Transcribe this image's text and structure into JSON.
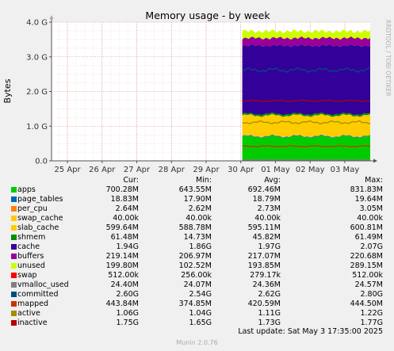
{
  "chart_data": {
    "type": "area",
    "title": "Memory usage - by week",
    "ylabel": "Bytes",
    "watermark": "RRDTOOL / TOBI OETIKER",
    "ylim": [
      0,
      4000000000
    ],
    "yticks": [
      {
        "value": 0,
        "label": "0.0"
      },
      {
        "value": 1000000000,
        "label": "1.0 G"
      },
      {
        "value": 2000000000,
        "label": "2.0 G"
      },
      {
        "value": 3000000000,
        "label": "3.0 G"
      },
      {
        "value": 4000000000,
        "label": "4.0 G"
      }
    ],
    "xlim": [
      "2025-04-24T13:00",
      "2025-05-03T17:35"
    ],
    "xticks": [
      {
        "value": "2025-04-25T00:00",
        "label": "25 Apr"
      },
      {
        "value": "2025-04-26T00:00",
        "label": "26 Apr"
      },
      {
        "value": "2025-04-27T00:00",
        "label": "27 Apr"
      },
      {
        "value": "2025-04-28T00:00",
        "label": "28 Apr"
      },
      {
        "value": "2025-04-29T00:00",
        "label": "29 Apr"
      },
      {
        "value": "2025-04-30T00:00",
        "label": "30 Apr"
      },
      {
        "value": "2025-05-01T00:00",
        "label": "01 May"
      },
      {
        "value": "2025-05-02T00:00",
        "label": "02 May"
      },
      {
        "value": "2025-05-03T00:00",
        "label": "03 May"
      }
    ],
    "data_start": "2025-04-30T01:00",
    "grid": true,
    "columns": [
      "Cur:",
      "Min:",
      "Avg:",
      "Max:"
    ],
    "series": [
      {
        "name": "apps",
        "color": "#00cc00",
        "kind": "area",
        "values": [
          700.28,
          643.55,
          692.46,
          831.83
        ],
        "labels": [
          "700.28M",
          "643.55M",
          "692.46M",
          "831.83M"
        ]
      },
      {
        "name": "page_tables",
        "color": "#0066b3",
        "kind": "area",
        "values": [
          18.83,
          17.9,
          18.79,
          19.64
        ],
        "labels": [
          "18.83M",
          "17.90M",
          "18.79M",
          "19.64M"
        ]
      },
      {
        "name": "per_cpu",
        "color": "#ff8000",
        "kind": "area",
        "values": [
          2.64,
          2.62,
          2.73,
          3.05
        ],
        "labels": [
          "2.64M",
          "2.62M",
          "2.73M",
          "3.05M"
        ]
      },
      {
        "name": "swap_cache",
        "color": "#ffcc00",
        "kind": "area",
        "values": [
          0.04,
          0.04,
          0.04,
          0.04
        ],
        "labels": [
          "40.00k",
          "40.00k",
          "40.00k",
          "40.00k"
        ]
      },
      {
        "name": "slab_cache",
        "color": "#ffcc00",
        "kind": "area",
        "values": [
          599.64,
          588.78,
          595.11,
          600.81
        ],
        "labels": [
          "599.64M",
          "588.78M",
          "595.11M",
          "600.81M"
        ]
      },
      {
        "name": "shmem",
        "color": "#008f00",
        "kind": "area",
        "values": [
          61.48,
          14.73,
          45.82,
          61.49
        ],
        "labels": [
          "61.48M",
          "14.73M",
          "45.82M",
          "61.49M"
        ]
      },
      {
        "name": "cache",
        "color": "#330099",
        "kind": "area",
        "values": [
          1940,
          1860,
          1970,
          2070
        ],
        "labels": [
          "1.94G",
          "1.86G",
          "1.97G",
          "2.07G"
        ]
      },
      {
        "name": "buffers",
        "color": "#990099",
        "kind": "area",
        "values": [
          219.14,
          206.97,
          217.07,
          220.68
        ],
        "labels": [
          "219.14M",
          "206.97M",
          "217.07M",
          "220.68M"
        ]
      },
      {
        "name": "unused",
        "color": "#ccff00",
        "kind": "area",
        "values": [
          199.8,
          102.52,
          193.85,
          289.15
        ],
        "labels": [
          "199.80M",
          "102.52M",
          "193.85M",
          "289.15M"
        ]
      },
      {
        "name": "swap",
        "color": "#ff0000",
        "kind": "area",
        "values": [
          0.512,
          0.256,
          0.27917,
          0.512
        ],
        "labels": [
          "512.00k",
          "256.00k",
          "279.17k",
          "512.00k"
        ]
      },
      {
        "name": "vmalloc_used",
        "color": "#808080",
        "kind": "line",
        "values": [
          24.4,
          24.07,
          24.36,
          24.57
        ],
        "labels": [
          "24.40M",
          "24.07M",
          "24.36M",
          "24.57M"
        ]
      },
      {
        "name": "committed",
        "color": "#004d80",
        "kind": "line",
        "values": [
          2600,
          2540,
          2620,
          2800
        ],
        "labels": [
          "2.60G",
          "2.54G",
          "2.62G",
          "2.80G"
        ]
      },
      {
        "name": "mapped",
        "color": "#cc3300",
        "kind": "line",
        "values": [
          443.84,
          374.85,
          420.59,
          444.5
        ],
        "labels": [
          "443.84M",
          "374.85M",
          "420.59M",
          "444.50M"
        ]
      },
      {
        "name": "active",
        "color": "#a68c00",
        "kind": "line",
        "values": [
          1060,
          1040,
          1110,
          1220
        ],
        "labels": [
          "1.06G",
          "1.04G",
          "1.11G",
          "1.22G"
        ]
      },
      {
        "name": "inactive",
        "color": "#b30000",
        "kind": "line",
        "values": [
          1750,
          1650,
          1730,
          1770
        ],
        "labels": [
          "1.75G",
          "1.65G",
          "1.73G",
          "1.77G"
        ]
      }
    ]
  },
  "last_update": "Last update: Sat May  3 17:35:00 2025",
  "footer": "Munin 2.0.76"
}
